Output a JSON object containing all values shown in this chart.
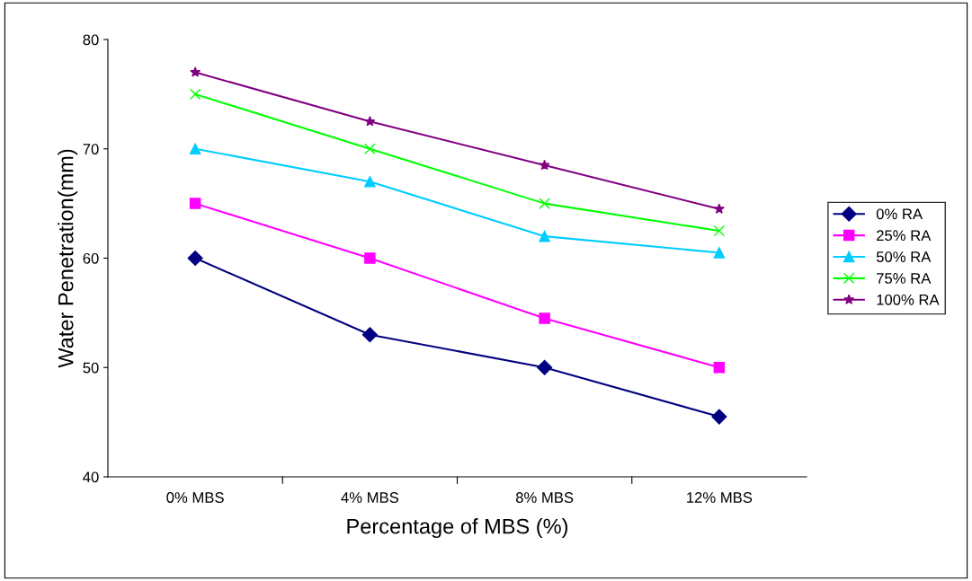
{
  "chart_data": {
    "type": "line",
    "xlabel": "Percentage of MBS (%)",
    "ylabel": "Water Penetration(mm)",
    "categories": [
      "0% MBS",
      "4% MBS",
      "8% MBS",
      "12% MBS"
    ],
    "series": [
      {
        "name": "0% RA",
        "color": "#000080",
        "marker": "diamond",
        "values": [
          60,
          53,
          50,
          45.5
        ]
      },
      {
        "name": "25% RA",
        "color": "#ff00ff",
        "marker": "square",
        "values": [
          65,
          60,
          54.5,
          50
        ]
      },
      {
        "name": "50% RA",
        "color": "#00ccff",
        "marker": "triangle",
        "values": [
          70,
          67,
          62,
          60.5
        ]
      },
      {
        "name": "75% RA",
        "color": "#00ff00",
        "marker": "cross",
        "values": [
          75,
          70,
          65,
          62.5
        ]
      },
      {
        "name": "100% RA",
        "color": "#800080",
        "marker": "star",
        "values": [
          77,
          72.5,
          68.5,
          64.5
        ]
      }
    ],
    "ylim": [
      40,
      80
    ],
    "yticks": [
      40,
      50,
      60,
      70,
      80
    ],
    "grid": false,
    "legend": "right",
    "line_style": "solid"
  }
}
